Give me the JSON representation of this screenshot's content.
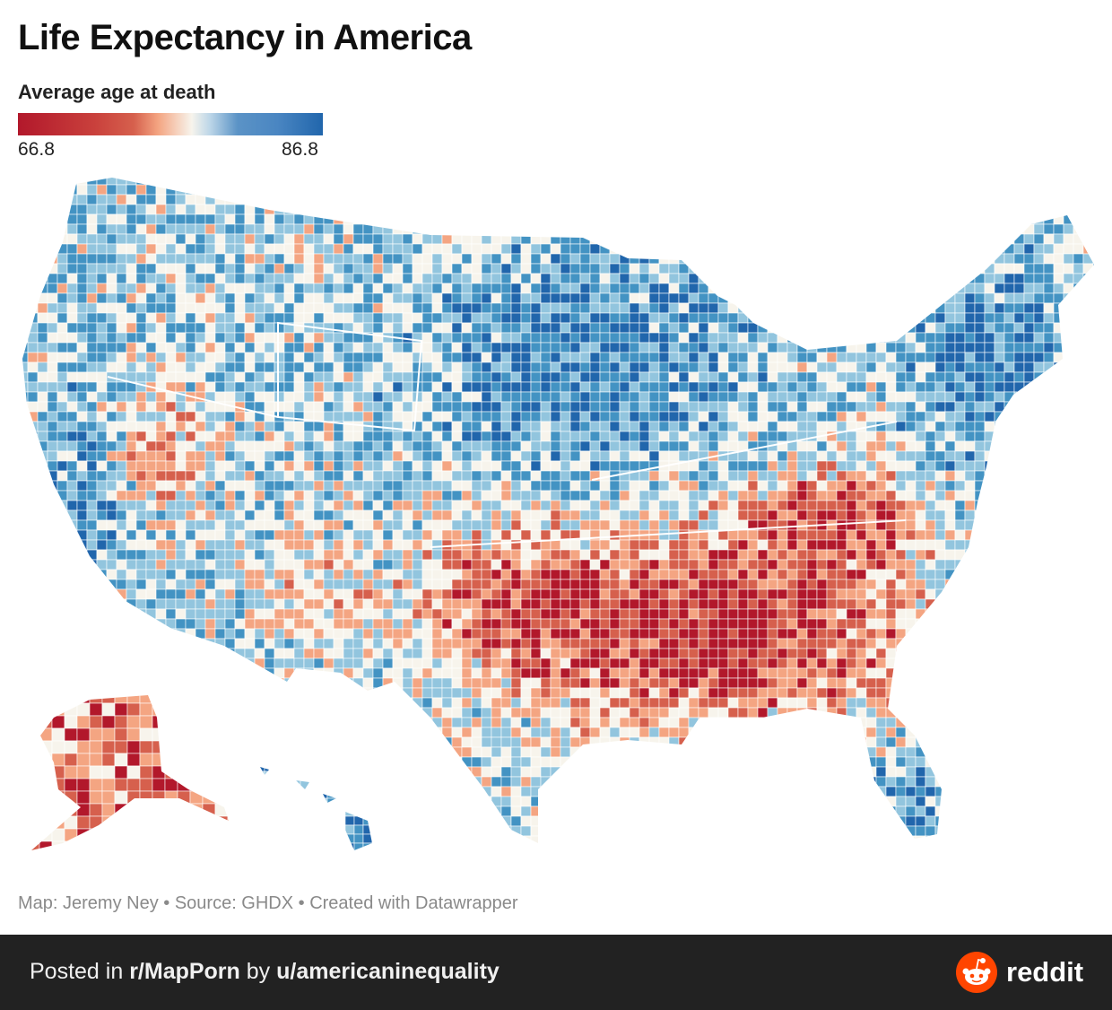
{
  "title": "Life Expectancy in America",
  "legend": {
    "title": "Average age at death",
    "min": "66.8",
    "max": "86.8",
    "colors": [
      "#b2182b",
      "#d6604d",
      "#f4a582",
      "#f7f4ec",
      "#92c5de",
      "#4393c3",
      "#2166ac"
    ]
  },
  "credits": "Map: Jeremy Ney • Source: GHDX • Created with Datawrapper",
  "footer": {
    "prefix": "Posted in ",
    "subreddit": "r/MapPorn",
    "by": " by ",
    "user": "u/americaninequality",
    "brand": "reddit",
    "brand_color": "#ff4500",
    "background": "#222222"
  }
}
